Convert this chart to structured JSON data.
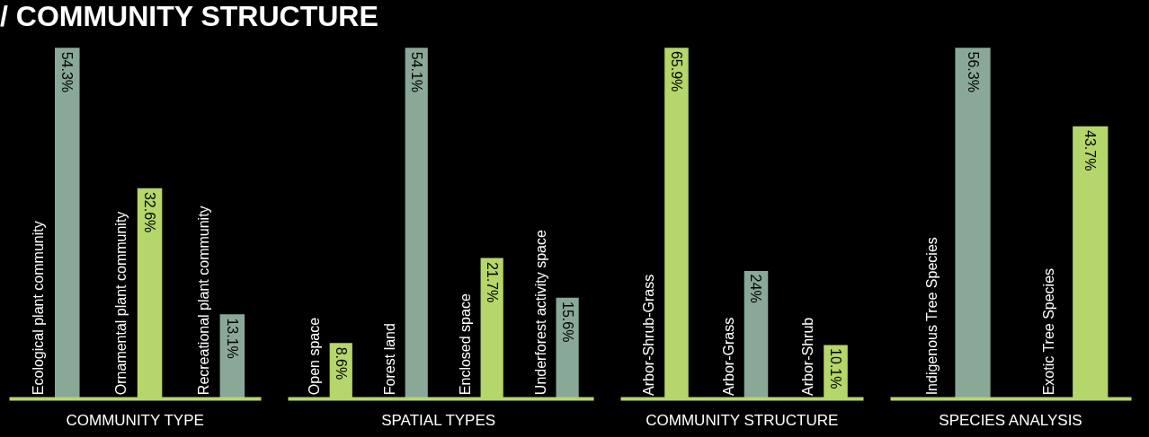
{
  "chart_data": [
    {
      "type": "bar",
      "title": "/ COMMUNITY STRUCTURE",
      "xlabel": "COMMUNITY TYPE",
      "categories": [
        "Ecological plant community",
        "Ornamental plant community",
        "Recreational plant community"
      ],
      "values": [
        54.3,
        32.6,
        13.1
      ],
      "colors": [
        "#8aa898",
        "#b5d66a",
        "#8aa898"
      ],
      "value_labels": [
        "54.3%",
        "32.6%",
        "13.1%"
      ]
    },
    {
      "type": "bar",
      "xlabel": "SPATIAL  TYPES",
      "categories": [
        "Open space",
        "Forest land",
        "Enclosed space",
        "Underforest activity space"
      ],
      "values": [
        8.6,
        54.1,
        21.7,
        15.6
      ],
      "colors": [
        "#b5d66a",
        "#8aa898",
        "#b5d66a",
        "#8aa898"
      ],
      "value_labels": [
        "8.6%",
        "54.1%",
        "21.7%",
        "15.6%"
      ]
    },
    {
      "type": "bar",
      "xlabel": "COMMUNITY STRUCTURE",
      "categories": [
        "Arbor-Shrub-Grass",
        "Arbor-Grass",
        "Arbor-Shrub"
      ],
      "values": [
        65.9,
        24,
        10.1
      ],
      "colors": [
        "#b5d66a",
        "#8aa898",
        "#b5d66a"
      ],
      "value_labels": [
        "65.9%",
        "24%",
        "10.1%"
      ]
    },
    {
      "type": "bar",
      "xlabel": "SPECIES ANALYSIS",
      "categories": [
        "Indigenous Tree Species",
        "Exotic Tree Species"
      ],
      "values": [
        56.3,
        43.7
      ],
      "colors": [
        "#8aa898",
        "#b5d66a"
      ],
      "value_labels": [
        "56.3%",
        "43.7%"
      ]
    }
  ]
}
